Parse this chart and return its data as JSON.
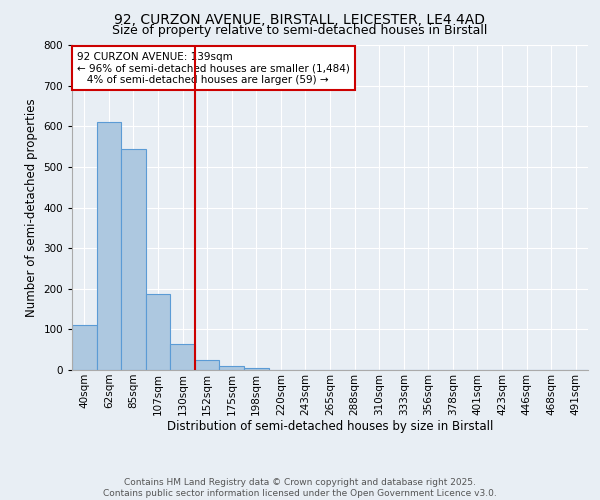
{
  "title_line1": "92, CURZON AVENUE, BIRSTALL, LEICESTER, LE4 4AD",
  "title_line2": "Size of property relative to semi-detached houses in Birstall",
  "xlabel": "Distribution of semi-detached houses by size in Birstall",
  "ylabel": "Number of semi-detached properties",
  "categories": [
    "40sqm",
    "62sqm",
    "85sqm",
    "107sqm",
    "130sqm",
    "152sqm",
    "175sqm",
    "198sqm",
    "220sqm",
    "243sqm",
    "265sqm",
    "288sqm",
    "310sqm",
    "333sqm",
    "356sqm",
    "378sqm",
    "401sqm",
    "423sqm",
    "446sqm",
    "468sqm",
    "491sqm"
  ],
  "values": [
    110,
    610,
    543,
    188,
    63,
    25,
    10,
    4,
    0,
    0,
    0,
    0,
    0,
    0,
    0,
    0,
    0,
    0,
    0,
    0,
    0
  ],
  "bar_color": "#adc8e0",
  "bar_edge_color": "#5b9bd5",
  "vline_pos": 4.5,
  "annotation_text": "92 CURZON AVENUE: 139sqm\n← 96% of semi-detached houses are smaller (1,484)\n   4% of semi-detached houses are larger (59) →",
  "annotation_box_color": "#ffffff",
  "annotation_box_edge_color": "#cc0000",
  "footnote1": "Contains HM Land Registry data © Crown copyright and database right 2025.",
  "footnote2": "Contains public sector information licensed under the Open Government Licence v3.0.",
  "ylim": [
    0,
    800
  ],
  "yticks": [
    0,
    100,
    200,
    300,
    400,
    500,
    600,
    700,
    800
  ],
  "background_color": "#e8eef4",
  "plot_background": "#e8eef4",
  "grid_color": "#ffffff",
  "vline_color": "#cc0000",
  "title_fontsize": 10,
  "subtitle_fontsize": 9,
  "axis_label_fontsize": 8.5,
  "tick_fontsize": 7.5,
  "annotation_fontsize": 7.5,
  "footnote_fontsize": 6.5
}
